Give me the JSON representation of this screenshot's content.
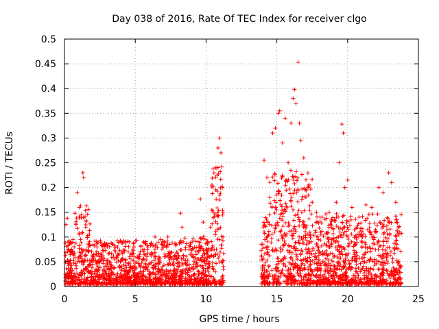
{
  "chart_data": {
    "type": "scatter",
    "title": "Day 038 of 2016, Rate Of TEC Index for receiver clgo",
    "xlabel": "GPS time / hours",
    "ylabel": "ROTI / TECUs",
    "xlim": [
      0,
      25
    ],
    "ylim": [
      0,
      0.5
    ],
    "xticks": [
      0,
      5,
      10,
      15,
      20,
      25
    ],
    "yticks": [
      0,
      0.05,
      0.1,
      0.15,
      0.2,
      0.25,
      0.3,
      0.35,
      0.4,
      0.45,
      0.5
    ],
    "tick_labels_x": [
      "0",
      "5",
      "10",
      "15",
      "20",
      "25"
    ],
    "tick_labels_y": [
      "0",
      "0.05",
      "0.1",
      "0.15",
      "0.2",
      "0.25",
      "0.3",
      "0.35",
      "0.4",
      "0.45",
      "0.5"
    ],
    "grid": true,
    "marker": "plus",
    "marker_color": "#ff0000",
    "series": [
      {
        "points": [
          [
            0.1,
            0.125
          ],
          [
            0.2,
            0.138
          ],
          [
            0.4,
            0.07
          ],
          [
            0.6,
            0.095
          ],
          [
            0.9,
            0.19
          ],
          [
            1.05,
            0.16
          ],
          [
            1.2,
            0.145
          ],
          [
            1.3,
            0.23
          ],
          [
            1.35,
            0.22
          ],
          [
            1.5,
            0.12
          ],
          [
            1.7,
            0.08
          ],
          [
            2.5,
            0.05
          ],
          [
            2.8,
            0.085
          ],
          [
            3.3,
            0.088
          ],
          [
            3.6,
            0.07
          ],
          [
            4.5,
            0.07
          ],
          [
            5.3,
            0.06
          ],
          [
            5.9,
            0.08
          ],
          [
            6.4,
            0.1
          ],
          [
            6.8,
            0.095
          ],
          [
            7.3,
            0.1
          ],
          [
            7.9,
            0.085
          ],
          [
            8.2,
            0.148
          ],
          [
            8.3,
            0.12
          ],
          [
            9.6,
            0.177
          ],
          [
            9.8,
            0.13
          ],
          [
            10.1,
            0.09
          ],
          [
            10.3,
            0.12
          ],
          [
            10.5,
            0.15
          ],
          [
            10.7,
            0.24
          ],
          [
            10.85,
            0.28
          ],
          [
            10.95,
            0.3
          ],
          [
            11.05,
            0.27
          ],
          [
            11.15,
            0.2
          ],
          [
            14.1,
            0.255
          ],
          [
            14.3,
            0.22
          ],
          [
            14.5,
            0.18
          ],
          [
            14.7,
            0.31
          ],
          [
            14.9,
            0.32
          ],
          [
            15.1,
            0.35
          ],
          [
            15.2,
            0.355
          ],
          [
            15.4,
            0.29
          ],
          [
            15.6,
            0.34
          ],
          [
            15.8,
            0.25
          ],
          [
            16.0,
            0.33
          ],
          [
            16.15,
            0.38
          ],
          [
            16.25,
            0.398
          ],
          [
            16.35,
            0.37
          ],
          [
            16.5,
            0.453
          ],
          [
            16.6,
            0.33
          ],
          [
            16.7,
            0.295
          ],
          [
            16.9,
            0.26
          ],
          [
            17.2,
            0.2
          ],
          [
            17.5,
            0.17
          ],
          [
            17.8,
            0.15
          ],
          [
            18.2,
            0.14
          ],
          [
            18.7,
            0.15
          ],
          [
            19.2,
            0.17
          ],
          [
            19.4,
            0.25
          ],
          [
            19.6,
            0.328
          ],
          [
            19.7,
            0.31
          ],
          [
            19.8,
            0.2
          ],
          [
            20.0,
            0.215
          ],
          [
            20.3,
            0.16
          ],
          [
            20.8,
            0.14
          ],
          [
            21.3,
            0.165
          ],
          [
            21.7,
            0.16
          ],
          [
            22.2,
            0.2
          ],
          [
            22.5,
            0.19
          ],
          [
            22.9,
            0.23
          ],
          [
            23.1,
            0.21
          ],
          [
            23.4,
            0.17
          ],
          [
            23.6,
            0.12
          ]
        ]
      }
    ]
  }
}
